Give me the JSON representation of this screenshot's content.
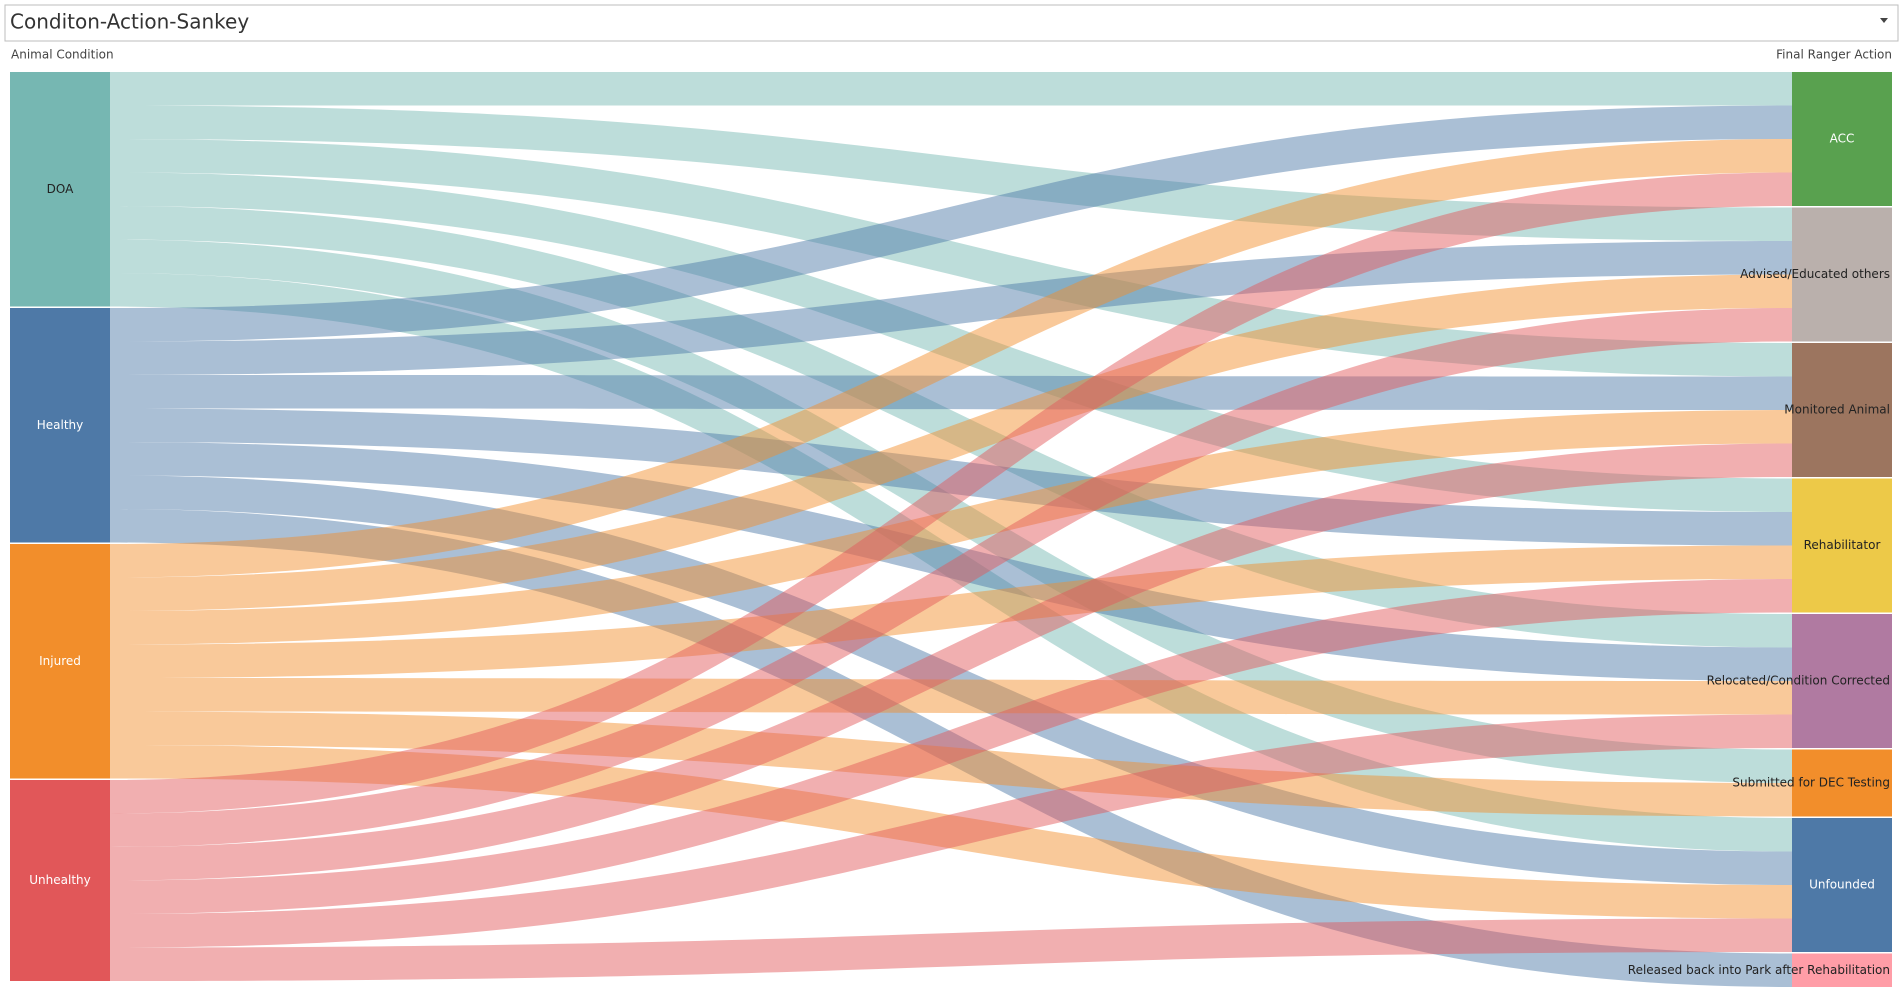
{
  "chart_data": {
    "type": "sankey",
    "title": "Conditon-Action-Sankey",
    "left_label": "Animal Condition",
    "right_label": "Final Ranger Action",
    "targets": [
      {
        "name": "ACC",
        "color": "#59a14f"
      },
      {
        "name": "Advised/Educated others",
        "color": "#bab0ac"
      },
      {
        "name": "Monitored Animal",
        "color": "#9c755f"
      },
      {
        "name": "Rehabilitator",
        "color": "#edc948"
      },
      {
        "name": "Relocated/Condition Corrected",
        "color": "#b07aa1"
      },
      {
        "name": "Submitted for DEC Testing",
        "color": "#f28e2b"
      },
      {
        "name": "Unfounded",
        "color": "#4e79a7"
      },
      {
        "name": "Released back into Park after Rehabilitation",
        "color": "#ff9da7"
      }
    ],
    "sources": [
      {
        "name": "DOA",
        "color": "#76b7b2",
        "flows": [
          1,
          1,
          1,
          1,
          1,
          1,
          1,
          0
        ]
      },
      {
        "name": "Healthy",
        "color": "#4e79a7",
        "flows": [
          1,
          1,
          1,
          1,
          1,
          0,
          1,
          1
        ]
      },
      {
        "name": "Injured",
        "color": "#f28e2b",
        "flows": [
          1,
          1,
          1,
          1,
          1,
          1,
          1,
          0
        ]
      },
      {
        "name": "Unhealthy",
        "color": "#e15759",
        "flows": [
          1,
          1,
          1,
          1,
          1,
          0,
          1,
          0
        ]
      }
    ]
  }
}
